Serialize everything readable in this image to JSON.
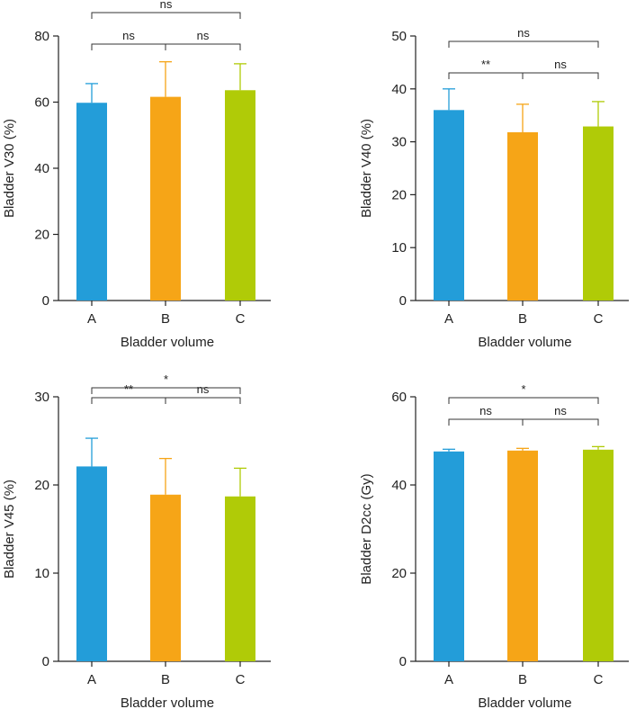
{
  "colors": {
    "A": "#239dd9",
    "B": "#f6a517",
    "C": "#b0cb07",
    "axis": "#222222"
  },
  "chart_data": [
    {
      "type": "bar",
      "panel": "top-left",
      "categories": [
        "A",
        "B",
        "C"
      ],
      "values": [
        59.8,
        61.6,
        63.6
      ],
      "errors": [
        5.8,
        10.6,
        8.0
      ],
      "xlabel": "Bladder volume",
      "ylabel": "Bladder V30 (%)",
      "ylim": [
        0,
        80
      ],
      "yticks": [
        "0",
        "20",
        "40",
        "60",
        "80"
      ],
      "comparisons": [
        {
          "pair": [
            "A",
            "B"
          ],
          "label": "ns",
          "level": 1
        },
        {
          "pair": [
            "B",
            "C"
          ],
          "label": "ns",
          "level": 1
        },
        {
          "pair": [
            "A",
            "C"
          ],
          "label": "ns",
          "level": 2
        }
      ]
    },
    {
      "type": "bar",
      "panel": "top-right",
      "categories": [
        "A",
        "B",
        "C"
      ],
      "values": [
        36.0,
        31.8,
        32.9
      ],
      "errors": [
        4.0,
        5.3,
        4.7
      ],
      "xlabel": "Bladder volume",
      "ylabel": "Bladder V40 (%)",
      "ylim": [
        0,
        50
      ],
      "yticks": [
        "0",
        "10",
        "20",
        "30",
        "40",
        "50"
      ],
      "comparisons": [
        {
          "pair": [
            "A",
            "B"
          ],
          "label": "**",
          "level": 1
        },
        {
          "pair": [
            "B",
            "C"
          ],
          "label": "ns",
          "level": 1
        },
        {
          "pair": [
            "A",
            "C"
          ],
          "label": "ns",
          "level": 2
        }
      ]
    },
    {
      "type": "bar",
      "panel": "bottom-left",
      "categories": [
        "A",
        "B",
        "C"
      ],
      "values": [
        22.1,
        18.9,
        18.7
      ],
      "errors": [
        3.2,
        4.1,
        3.2
      ],
      "xlabel": "Bladder volume",
      "ylabel": "Bladder V45 (%)",
      "ylim": [
        0,
        30
      ],
      "yticks": [
        "0",
        "10",
        "20",
        "30"
      ],
      "comparisons": [
        {
          "pair": [
            "A",
            "B"
          ],
          "label": "**",
          "level": 1
        },
        {
          "pair": [
            "B",
            "C"
          ],
          "label": "ns",
          "level": 1
        },
        {
          "pair": [
            "A",
            "C"
          ],
          "label": "*",
          "level": 2
        }
      ]
    },
    {
      "type": "bar",
      "panel": "bottom-right",
      "categories": [
        "A",
        "B",
        "C"
      ],
      "values": [
        47.6,
        47.8,
        48.0
      ],
      "errors": [
        0.5,
        0.5,
        0.7
      ],
      "xlabel": "Bladder volume",
      "ylabel": "Bladder D2cc (Gy)",
      "ylim": [
        0,
        60
      ],
      "yticks": [
        "0",
        "20",
        "40",
        "60"
      ],
      "comparisons": [
        {
          "pair": [
            "A",
            "B"
          ],
          "label": "ns",
          "level": 1
        },
        {
          "pair": [
            "B",
            "C"
          ],
          "label": "ns",
          "level": 1
        },
        {
          "pair": [
            "A",
            "C"
          ],
          "label": "*",
          "level": 2
        }
      ]
    }
  ]
}
